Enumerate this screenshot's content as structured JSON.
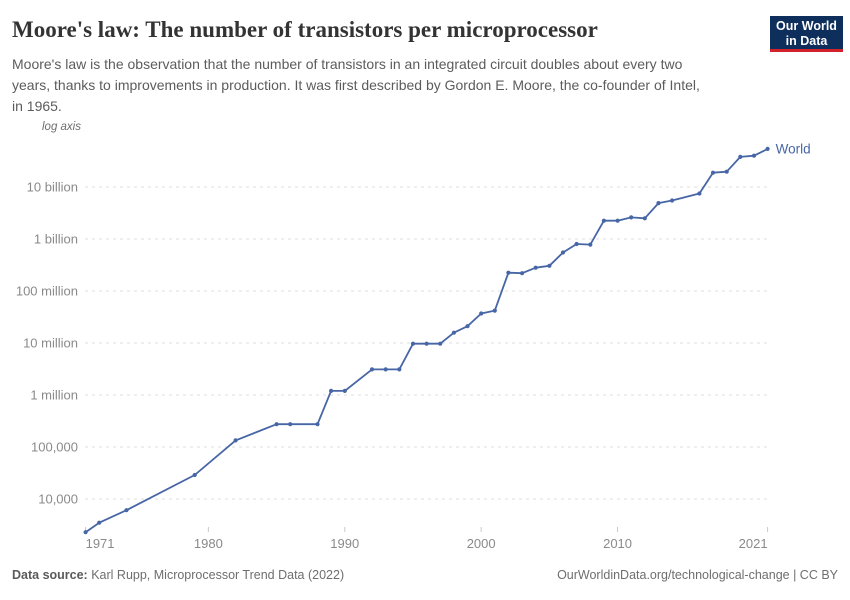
{
  "header": {
    "title": "Moore's law: The number of transistors per microprocessor",
    "subtitle_lines": [
      "Moore's law is the observation that the number of transistors in an integrated circuit doubles about every two",
      "years, thanks to improvements in production. It was first described by Gordon E. Moore, the co-founder of Intel,",
      "in 1965."
    ]
  },
  "logo": {
    "line1": "Our World",
    "line2": "in Data",
    "bg_color": "#0E2E5C",
    "stripe_color": "#D0232B"
  },
  "chart_data": {
    "type": "line",
    "title": "Moore's law: The number of transistors per microprocessor",
    "y_axis_note": "log axis",
    "y_scale": "log",
    "grid": "horizontal-dashed",
    "legend_position": "end-of-line",
    "x_ticks": [
      1971,
      1980,
      1990,
      2000,
      2010,
      2021
    ],
    "xlim": [
      1971,
      2023
    ],
    "ylim": [
      2000,
      60000000000
    ],
    "y_ticks": [
      {
        "value": 10000,
        "label": "10,000"
      },
      {
        "value": 100000,
        "label": "100,000"
      },
      {
        "value": 1000000,
        "label": "1 million"
      },
      {
        "value": 10000000,
        "label": "10 million"
      },
      {
        "value": 100000000,
        "label": "100 million"
      },
      {
        "value": 1000000000,
        "label": "1 billion"
      },
      {
        "value": 10000000000,
        "label": "10 billion"
      }
    ],
    "series": [
      {
        "name": "World",
        "color": "#4766A6",
        "points": [
          [
            1971,
            2300
          ],
          [
            1972,
            3500
          ],
          [
            1974,
            6100
          ],
          [
            1979,
            29000
          ],
          [
            1982,
            134000
          ],
          [
            1985,
            274000
          ],
          [
            1986,
            274000
          ],
          [
            1988,
            274000
          ],
          [
            1989,
            1200000
          ],
          [
            1990,
            1200000
          ],
          [
            1992,
            3100000
          ],
          [
            1993,
            3100000
          ],
          [
            1994,
            3100000
          ],
          [
            1995,
            9700000
          ],
          [
            1996,
            9700000
          ],
          [
            1997,
            9700000
          ],
          [
            1998,
            15800000
          ],
          [
            1999,
            21000000
          ],
          [
            2000,
            37000000
          ],
          [
            2001,
            42000000
          ],
          [
            2002,
            225000000
          ],
          [
            2003,
            220000000
          ],
          [
            2004,
            280000000
          ],
          [
            2005,
            305000000
          ],
          [
            2006,
            550000000
          ],
          [
            2007,
            800000000
          ],
          [
            2008,
            780000000
          ],
          [
            2009,
            2250000000
          ],
          [
            2010,
            2250000000
          ],
          [
            2011,
            2600000000
          ],
          [
            2012,
            2500000000
          ],
          [
            2013,
            4900000000
          ],
          [
            2014,
            5500000000
          ],
          [
            2016,
            7500000000
          ],
          [
            2017,
            18800000000
          ],
          [
            2018,
            19700000000
          ],
          [
            2019,
            38000000000
          ],
          [
            2020,
            40000000000
          ],
          [
            2021,
            54000000000
          ]
        ]
      }
    ]
  },
  "footer": {
    "source_label": "Data source:",
    "source_text": "Karl Rupp, Microprocessor Trend Data (2022)",
    "link": "OurWorldinData.org/technological-change | CC BY"
  }
}
